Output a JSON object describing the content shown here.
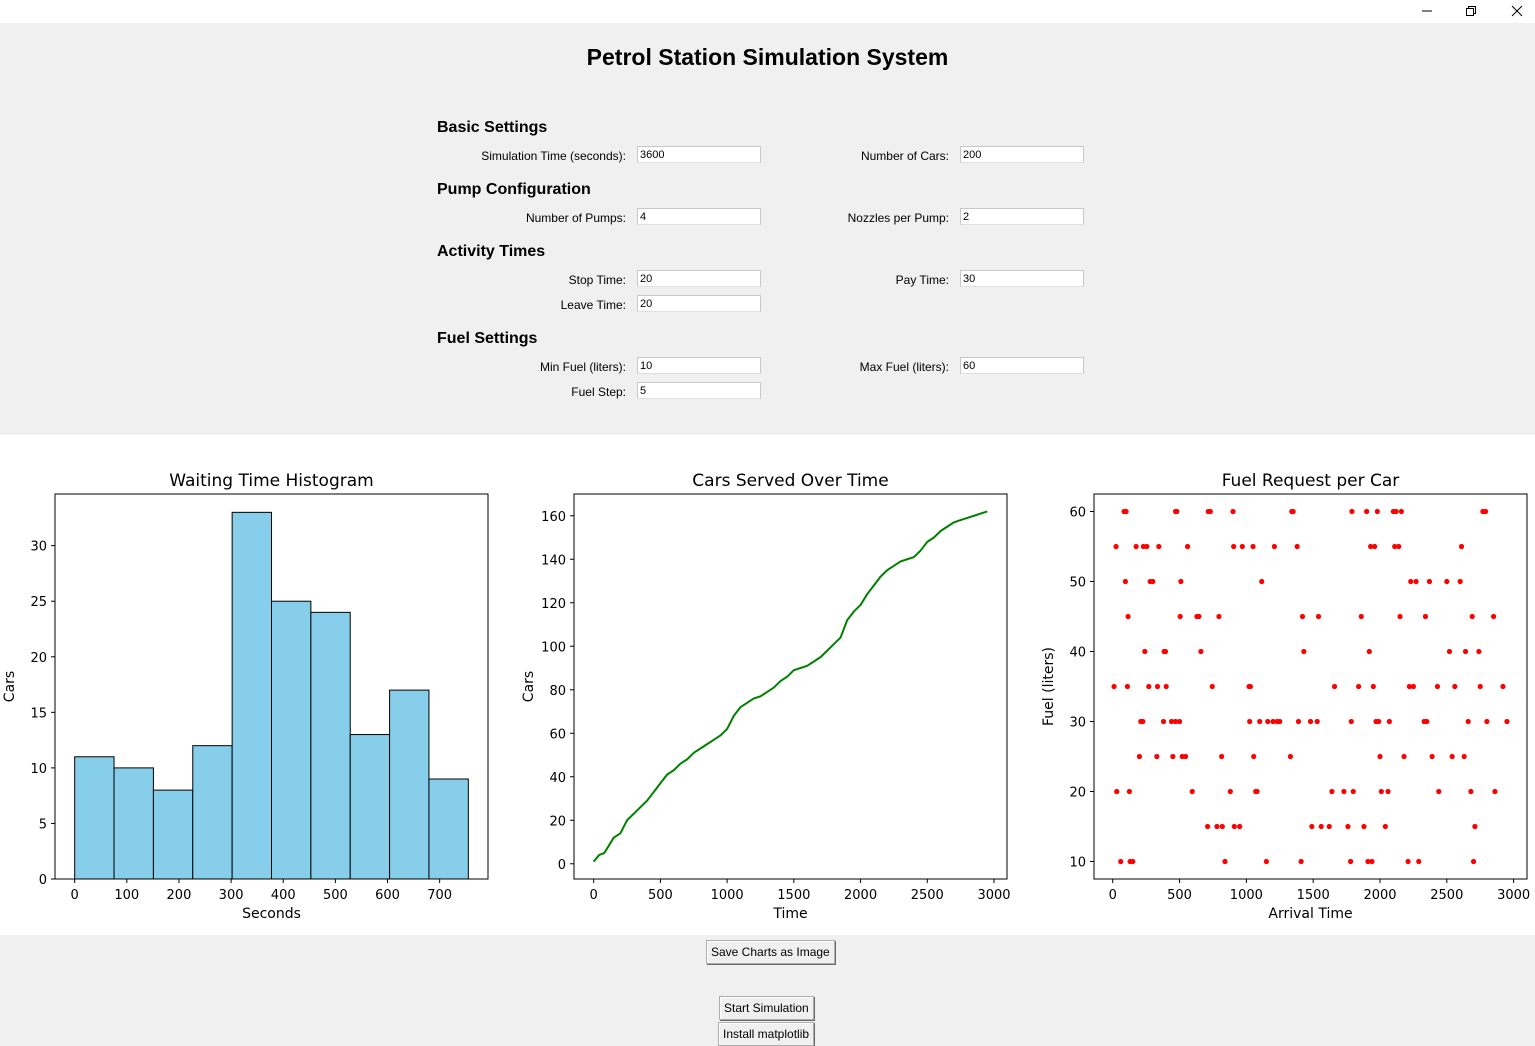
{
  "app": {
    "title": "Petrol Station Simulation System"
  },
  "sections": {
    "basic": "Basic Settings",
    "pump": "Pump Configuration",
    "activity": "Activity Times",
    "fuel": "Fuel Settings"
  },
  "fields": {
    "sim_time": {
      "label": "Simulation Time (seconds):",
      "value": "3600"
    },
    "num_cars": {
      "label": "Number of Cars:",
      "value": "200"
    },
    "num_pumps": {
      "label": "Number of Pumps:",
      "value": "4"
    },
    "nozzles": {
      "label": "Nozzles per Pump:",
      "value": "2"
    },
    "stop_time": {
      "label": "Stop Time:",
      "value": "20"
    },
    "pay_time": {
      "label": "Pay Time:",
      "value": "30"
    },
    "leave_time": {
      "label": "Leave Time:",
      "value": "20"
    },
    "min_fuel": {
      "label": "Min Fuel (liters):",
      "value": "10"
    },
    "max_fuel": {
      "label": "Max Fuel (liters):",
      "value": "60"
    },
    "fuel_step": {
      "label": "Fuel Step:",
      "value": "5"
    }
  },
  "buttons": {
    "save_charts": "Save Charts as Image",
    "start": "Start Simulation",
    "install": "Install matplotlib"
  },
  "window_controls": {
    "minimize": "minimize-icon",
    "restore": "restore-icon",
    "close": "close-icon"
  },
  "chart_data": [
    {
      "type": "bar",
      "title": "Waiting Time Histogram",
      "xlabel": "Seconds",
      "ylabel": "Cars",
      "bin_edges": [
        0,
        75.5,
        151,
        226.5,
        302,
        377.5,
        453,
        528.5,
        604,
        679.5,
        755
      ],
      "values": [
        11,
        10,
        8,
        12,
        33,
        25,
        24,
        13,
        17,
        9
      ],
      "xticks": [
        0,
        100,
        200,
        300,
        400,
        500,
        600,
        700
      ],
      "yticks": [
        0,
        5,
        10,
        15,
        20,
        25,
        30
      ],
      "xlim": [
        -37.75,
        792.75
      ],
      "ylim": [
        0,
        34.65
      ],
      "color": "#87ceeb",
      "edgecolor": "#000000",
      "grid": false
    },
    {
      "type": "line",
      "title": "Cars Served Over Time",
      "xlabel": "Time",
      "ylabel": "Cars",
      "x": [
        0,
        40,
        80,
        100,
        150,
        200,
        250,
        300,
        350,
        400,
        450,
        500,
        550,
        600,
        650,
        700,
        750,
        800,
        850,
        900,
        950,
        1000,
        1050,
        1100,
        1150,
        1200,
        1250,
        1300,
        1350,
        1400,
        1450,
        1500,
        1550,
        1600,
        1650,
        1700,
        1750,
        1800,
        1850,
        1900,
        1950,
        2000,
        2050,
        2100,
        2150,
        2200,
        2250,
        2300,
        2350,
        2400,
        2450,
        2500,
        2550,
        2600,
        2650,
        2700,
        2750,
        2800,
        2850,
        2900,
        2950
      ],
      "y": [
        1,
        4,
        5,
        7,
        12,
        14,
        20,
        23,
        26,
        29,
        33,
        37,
        41,
        43,
        46,
        48,
        51,
        53,
        55,
        57,
        59,
        62,
        68,
        72,
        74,
        76,
        77,
        79,
        81,
        84,
        86,
        89,
        90,
        91,
        93,
        95,
        98,
        101,
        104,
        112,
        116,
        119,
        124,
        128,
        132,
        135,
        137,
        139,
        140,
        141,
        144,
        148,
        150,
        153,
        155,
        157,
        158,
        159,
        160,
        161,
        162
      ],
      "xticks": [
        0,
        500,
        1000,
        1500,
        2000,
        2500,
        3000
      ],
      "yticks": [
        0,
        20,
        40,
        60,
        80,
        100,
        120,
        140,
        160
      ],
      "xlim": [
        -147.5,
        3097.5
      ],
      "ylim": [
        -7,
        170
      ],
      "color": "#008000",
      "grid": false
    },
    {
      "type": "scatter",
      "title": "Fuel Request per Car",
      "xlabel": "Arrival Time",
      "ylabel": "Fuel (liters)",
      "xticks": [
        0,
        500,
        1000,
        1500,
        2000,
        2500,
        3000
      ],
      "yticks": [
        10,
        20,
        30,
        40,
        50,
        60
      ],
      "xlim": [
        -140,
        3100
      ],
      "ylim": [
        7.5,
        62.5
      ],
      "color": "#ff0000",
      "grid": false,
      "points": [
        [
          10,
          35
        ],
        [
          30,
          20
        ],
        [
          25,
          55
        ],
        [
          60,
          10
        ],
        [
          85,
          60
        ],
        [
          95,
          50
        ],
        [
          100,
          60
        ],
        [
          110,
          35
        ],
        [
          115,
          45
        ],
        [
          125,
          20
        ],
        [
          130,
          10
        ],
        [
          150,
          10
        ],
        [
          175,
          55
        ],
        [
          200,
          25
        ],
        [
          210,
          30
        ],
        [
          225,
          30
        ],
        [
          230,
          55
        ],
        [
          240,
          40
        ],
        [
          255,
          55
        ],
        [
          270,
          35
        ],
        [
          280,
          50
        ],
        [
          300,
          50
        ],
        [
          330,
          25
        ],
        [
          335,
          35
        ],
        [
          345,
          55
        ],
        [
          380,
          30
        ],
        [
          385,
          40
        ],
        [
          395,
          40
        ],
        [
          400,
          35
        ],
        [
          440,
          30
        ],
        [
          450,
          25
        ],
        [
          470,
          30
        ],
        [
          470,
          60
        ],
        [
          480,
          60
        ],
        [
          500,
          30
        ],
        [
          505,
          45
        ],
        [
          510,
          50
        ],
        [
          520,
          25
        ],
        [
          545,
          25
        ],
        [
          560,
          55
        ],
        [
          595,
          20
        ],
        [
          630,
          45
        ],
        [
          645,
          45
        ],
        [
          660,
          40
        ],
        [
          710,
          15
        ],
        [
          715,
          60
        ],
        [
          730,
          60
        ],
        [
          745,
          35
        ],
        [
          780,
          15
        ],
        [
          795,
          45
        ],
        [
          815,
          25
        ],
        [
          820,
          15
        ],
        [
          840,
          10
        ],
        [
          880,
          20
        ],
        [
          900,
          60
        ],
        [
          905,
          55
        ],
        [
          910,
          15
        ],
        [
          950,
          15
        ],
        [
          970,
          55
        ],
        [
          1020,
          35
        ],
        [
          1025,
          30
        ],
        [
          1030,
          35
        ],
        [
          1050,
          55
        ],
        [
          1055,
          25
        ],
        [
          1070,
          20
        ],
        [
          1080,
          20
        ],
        [
          1100,
          30
        ],
        [
          1115,
          50
        ],
        [
          1150,
          10
        ],
        [
          1160,
          30
        ],
        [
          1200,
          30
        ],
        [
          1210,
          55
        ],
        [
          1230,
          30
        ],
        [
          1250,
          30
        ],
        [
          1330,
          25
        ],
        [
          1340,
          60
        ],
        [
          1350,
          60
        ],
        [
          1380,
          55
        ],
        [
          1390,
          30
        ],
        [
          1410,
          10
        ],
        [
          1420,
          45
        ],
        [
          1430,
          40
        ],
        [
          1480,
          30
        ],
        [
          1490,
          15
        ],
        [
          1530,
          30
        ],
        [
          1540,
          45
        ],
        [
          1560,
          15
        ],
        [
          1620,
          15
        ],
        [
          1640,
          20
        ],
        [
          1660,
          35
        ],
        [
          1730,
          20
        ],
        [
          1760,
          15
        ],
        [
          1780,
          10
        ],
        [
          1785,
          30
        ],
        [
          1790,
          60
        ],
        [
          1800,
          20
        ],
        [
          1840,
          35
        ],
        [
          1860,
          45
        ],
        [
          1880,
          15
        ],
        [
          1900,
          60
        ],
        [
          1910,
          10
        ],
        [
          1920,
          40
        ],
        [
          1930,
          55
        ],
        [
          1940,
          10
        ],
        [
          1950,
          35
        ],
        [
          1960,
          55
        ],
        [
          1970,
          30
        ],
        [
          1980,
          60
        ],
        [
          1990,
          30
        ],
        [
          2000,
          25
        ],
        [
          2010,
          20
        ],
        [
          2040,
          15
        ],
        [
          2060,
          20
        ],
        [
          2070,
          30
        ],
        [
          2100,
          60
        ],
        [
          2110,
          55
        ],
        [
          2120,
          60
        ],
        [
          2140,
          55
        ],
        [
          2150,
          45
        ],
        [
          2160,
          60
        ],
        [
          2180,
          25
        ],
        [
          2210,
          10
        ],
        [
          2220,
          35
        ],
        [
          2230,
          50
        ],
        [
          2250,
          35
        ],
        [
          2270,
          50
        ],
        [
          2290,
          10
        ],
        [
          2330,
          30
        ],
        [
          2340,
          45
        ],
        [
          2350,
          30
        ],
        [
          2370,
          50
        ],
        [
          2390,
          25
        ],
        [
          2430,
          35
        ],
        [
          2440,
          20
        ],
        [
          2500,
          50
        ],
        [
          2520,
          40
        ],
        [
          2540,
          25
        ],
        [
          2560,
          35
        ],
        [
          2600,
          50
        ],
        [
          2610,
          55
        ],
        [
          2630,
          25
        ],
        [
          2640,
          40
        ],
        [
          2660,
          30
        ],
        [
          2680,
          20
        ],
        [
          2690,
          45
        ],
        [
          2700,
          10
        ],
        [
          2710,
          15
        ],
        [
          2740,
          40
        ],
        [
          2750,
          35
        ],
        [
          2770,
          60
        ],
        [
          2790,
          60
        ],
        [
          2800,
          30
        ],
        [
          2850,
          45
        ],
        [
          2860,
          20
        ],
        [
          2920,
          35
        ],
        [
          2950,
          30
        ]
      ]
    }
  ]
}
